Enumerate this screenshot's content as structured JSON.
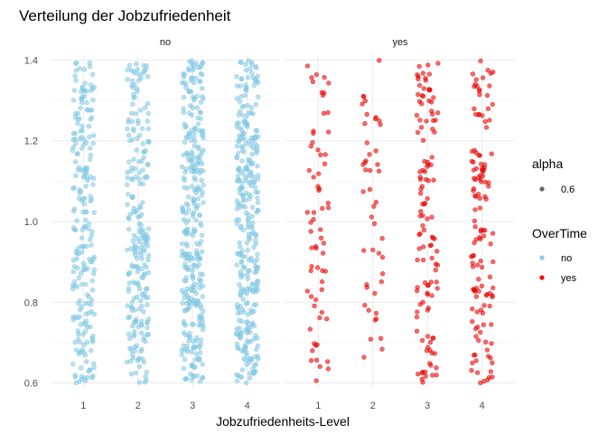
{
  "chart_data": {
    "type": "scatter",
    "title": "Verteilung der Jobzufriedenheit",
    "xlabel": "Jobzufriedenheits-Level",
    "ylabel": "",
    "x_categories": [
      "1",
      "2",
      "3",
      "4"
    ],
    "ylim": [
      0.59,
      1.41
    ],
    "y_ticks": [
      "0.6",
      "0.8",
      "1.0",
      "1.2",
      "1.4"
    ],
    "jitter": {
      "x_width": 0.2,
      "y_range": [
        0.6,
        1.4
      ]
    },
    "facets": [
      {
        "label": "no",
        "overtime": "no",
        "counts": [
          223,
          234,
          322,
          327
        ]
      },
      {
        "label": "yes",
        "overtime": "yes",
        "counts": [
          66,
          46,
          120,
          132
        ]
      }
    ],
    "legend": {
      "alpha": {
        "title": "alpha",
        "items": [
          {
            "label": "0.6"
          }
        ]
      },
      "overtime": {
        "title": "OverTime",
        "items": [
          {
            "label": "no",
            "color": "#87ceeb"
          },
          {
            "label": "yes",
            "color": "#ff0000"
          }
        ]
      }
    },
    "point_alpha": 0.6,
    "grid": true
  }
}
